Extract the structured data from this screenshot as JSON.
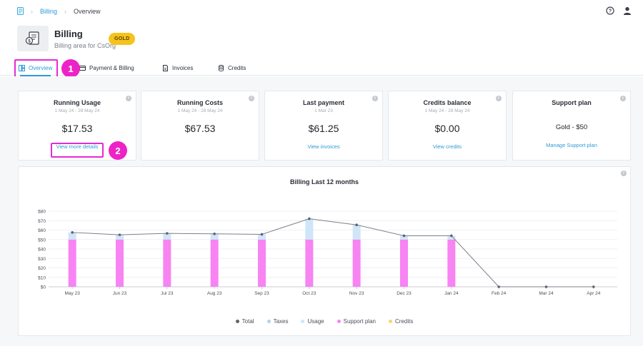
{
  "breadcrumb": {
    "home_icon": "document-icon",
    "billing": "Billing",
    "current": "Overview"
  },
  "topbar_icons": [
    "help-icon",
    "user-icon"
  ],
  "header": {
    "title": "Billing",
    "subtitle": "Billing area for CsOrg",
    "badge": "GOLD"
  },
  "tabs": [
    {
      "label": "Overview",
      "icon": "dashboard-icon",
      "active": true
    },
    {
      "label": "Payment & Billing",
      "icon": "credit-card-icon",
      "active": false
    },
    {
      "label": "Invoices",
      "icon": "invoice-icon",
      "active": false
    },
    {
      "label": "Credits",
      "icon": "coins-icon",
      "active": false
    }
  ],
  "callouts": [
    "1",
    "2"
  ],
  "cards": [
    {
      "title": "Running Usage",
      "date": "1 May 24 - 28 May 24",
      "value": "$17.53",
      "link": "View more details"
    },
    {
      "title": "Running Costs",
      "date": "1 May 24 - 28 May 24",
      "value": "$67.53",
      "link": ""
    },
    {
      "title": "Last payment",
      "date": "1 Mar 23",
      "value": "$61.25",
      "link": "View invoices"
    },
    {
      "title": "Credits balance",
      "date": "1 May 24 - 28 May 24",
      "value": "$0.00",
      "link": "View credits"
    },
    {
      "title": "Support plan",
      "date": "",
      "value": "Gold - $50",
      "link": "Manage Support plan"
    }
  ],
  "chart_data": {
    "type": "bar",
    "title": "Billing Last 12 months",
    "categories": [
      "May 23",
      "Jun 23",
      "Jul 23",
      "Aug 23",
      "Sep 23",
      "Oct 23",
      "Nov 23",
      "Dec 23",
      "Jan 24",
      "Feb 24",
      "Mar 24",
      "Apr 24"
    ],
    "yticks": [
      "$0",
      "$10",
      "$20",
      "$30",
      "$40",
      "$50",
      "$60",
      "$70",
      "$80"
    ],
    "ylim": [
      0,
      80
    ],
    "stacked": true,
    "series": [
      {
        "name": "Support plan",
        "kind": "bar",
        "color": "#f784f2",
        "values": [
          50,
          50,
          50,
          50,
          50,
          50,
          50,
          50,
          50,
          0,
          0,
          0
        ]
      },
      {
        "name": "Usage",
        "kind": "bar",
        "color": "#cfe6f8",
        "values": [
          7.5,
          5,
          6.5,
          6,
          5.5,
          22,
          15.5,
          4,
          4,
          0,
          0,
          0
        ]
      },
      {
        "name": "Taxes",
        "kind": "bar",
        "color": "#b6cfe6",
        "values": [
          0,
          0,
          0,
          0,
          0,
          0,
          0,
          0,
          0,
          0,
          0,
          0
        ]
      },
      {
        "name": "Credits",
        "kind": "bar",
        "color": "#f8d66a",
        "values": [
          0,
          0,
          0,
          0,
          0,
          0,
          0,
          0,
          0,
          0,
          0,
          0
        ]
      },
      {
        "name": "Total",
        "kind": "line",
        "color": "#6b7280",
        "values": [
          57.5,
          55,
          56.5,
          56,
          55.5,
          72,
          65.5,
          54,
          54,
          0,
          0,
          0
        ]
      }
    ],
    "legend": [
      {
        "name": "Total",
        "color": "#5d6470"
      },
      {
        "name": "Taxes",
        "color": "#b6cfe6"
      },
      {
        "name": "Usage",
        "color": "#cfe6f8"
      },
      {
        "name": "Support plan",
        "color": "#f784f2"
      },
      {
        "name": "Credits",
        "color": "#f8d66a"
      }
    ],
    "legend_position": "bottom",
    "grid": true
  }
}
